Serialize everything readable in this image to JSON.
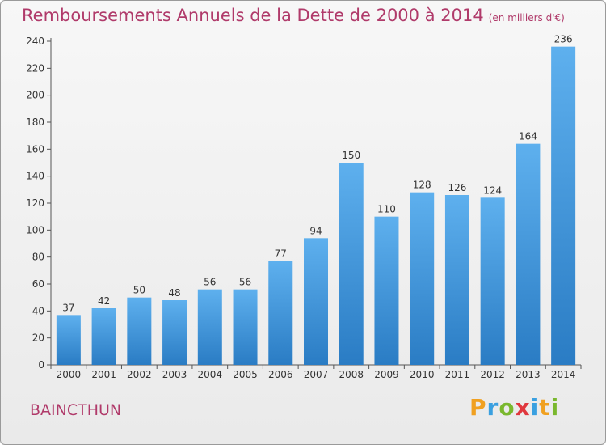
{
  "chart_data": {
    "type": "bar",
    "title": "Remboursements Annuels de la Dette de 2000 à 2014",
    "subtitle": "(en milliers d'€)",
    "categories": [
      "2000",
      "2001",
      "2002",
      "2003",
      "2004",
      "2005",
      "2006",
      "2007",
      "2008",
      "2009",
      "2010",
      "2011",
      "2012",
      "2013",
      "2014"
    ],
    "values": [
      37,
      42,
      50,
      48,
      56,
      56,
      77,
      94,
      150,
      110,
      128,
      126,
      124,
      164,
      236
    ],
    "ylim": [
      0,
      240
    ],
    "yticks": [
      0,
      20,
      40,
      60,
      80,
      100,
      120,
      140,
      160,
      180,
      200,
      220,
      240
    ],
    "grid": false,
    "bar_color": "#3d8fd6"
  },
  "commune": "BAINCTHUN",
  "logo": {
    "text": "Proxiti",
    "letters": [
      {
        "ch": "P",
        "color": "#f0a020"
      },
      {
        "ch": "r",
        "color": "#3aa0e0"
      },
      {
        "ch": "o",
        "color": "#7ab82e"
      },
      {
        "ch": "x",
        "color": "#e0383e"
      },
      {
        "ch": "i",
        "color": "#3aa0e0"
      },
      {
        "ch": "t",
        "color": "#f0a020"
      },
      {
        "ch": "i",
        "color": "#7ab82e"
      }
    ]
  }
}
